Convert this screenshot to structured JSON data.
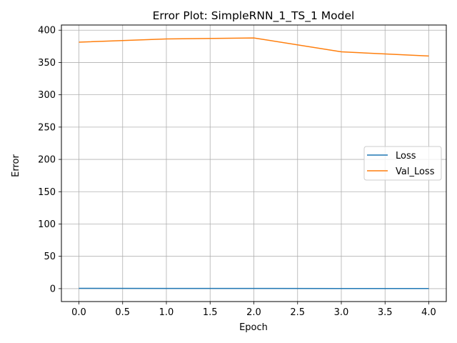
{
  "chart_data": {
    "type": "line",
    "title": "Error Plot: SimpleRNN_1_TS_1 Model",
    "xlabel": "Epoch",
    "ylabel": "Error",
    "x": [
      0,
      1,
      2,
      3,
      4
    ],
    "series": [
      {
        "name": "Loss",
        "values": [
          0.5,
          0.3,
          0.3,
          0.2,
          0.2
        ],
        "color": "#1f77b4"
      },
      {
        "name": "Val_Loss",
        "values": [
          381.5,
          386.5,
          388.0,
          366.5,
          360.0
        ],
        "color": "#ff7f0e"
      }
    ],
    "xlim": [
      -0.2,
      4.2
    ],
    "ylim": [
      -20,
      408
    ],
    "xticks": [
      0.0,
      0.5,
      1.0,
      1.5,
      2.0,
      2.5,
      3.0,
      3.5,
      4.0
    ],
    "xtick_labels": [
      "0.0",
      "0.5",
      "1.0",
      "1.5",
      "2.0",
      "2.5",
      "3.0",
      "3.5",
      "4.0"
    ],
    "yticks": [
      0,
      50,
      100,
      150,
      200,
      250,
      300,
      350,
      400
    ],
    "ytick_labels": [
      "0",
      "50",
      "100",
      "150",
      "200",
      "250",
      "300",
      "350",
      "400"
    ],
    "grid": true,
    "legend_position": "center-right"
  }
}
